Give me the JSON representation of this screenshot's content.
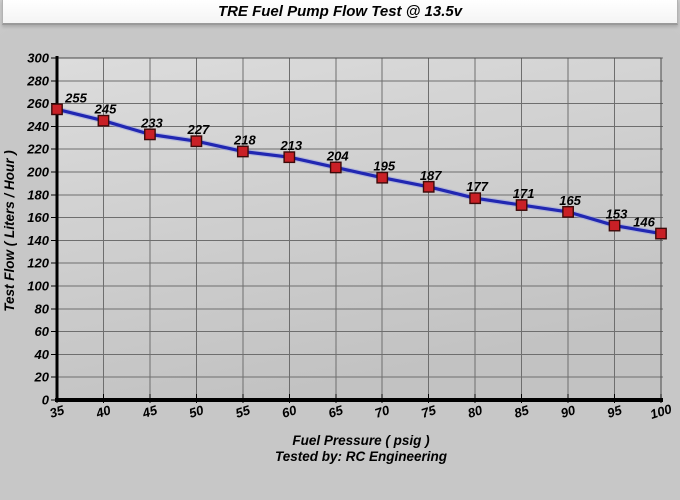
{
  "window": {
    "title": "TRE Fuel Pump Flow Test @ 13.5v"
  },
  "chart_data": {
    "type": "line",
    "title": "TRE Fuel Pump Flow Test @ 13.5v",
    "xlabel": "Fuel Pressure ( psig )",
    "xlabel_note": "Tested by: RC Engineering",
    "ylabel": "Test Flow ( Liters / Hour )",
    "x": [
      35,
      40,
      45,
      50,
      55,
      60,
      65,
      70,
      75,
      80,
      85,
      90,
      95,
      100
    ],
    "series": [
      {
        "name": "Test Flow",
        "values": [
          255,
          245,
          233,
          227,
          218,
          213,
          204,
          195,
          187,
          177,
          171,
          165,
          153,
          146
        ]
      }
    ],
    "data_labels_shown": true,
    "marker": "square",
    "x_ticks": [
      35,
      40,
      45,
      50,
      55,
      60,
      65,
      70,
      75,
      80,
      85,
      90,
      95,
      100
    ],
    "y_ticks": [
      0,
      20,
      40,
      60,
      80,
      100,
      120,
      140,
      160,
      180,
      200,
      220,
      240,
      260,
      280,
      300
    ],
    "xlim": [
      35,
      100
    ],
    "ylim": [
      0,
      300
    ],
    "grid": true,
    "legend": "none",
    "colors": {
      "line": "#2127b2",
      "line_halo": "#9aa2e0",
      "marker_fill": "#c92026",
      "marker_border": "#3c0a0a",
      "grid": "#6e6e6e",
      "plot_border": "#4a4a4a",
      "axis": "#000000",
      "plot_bg_top": "#dcdcdc",
      "plot_bg_bottom": "#c2c2c2"
    }
  }
}
